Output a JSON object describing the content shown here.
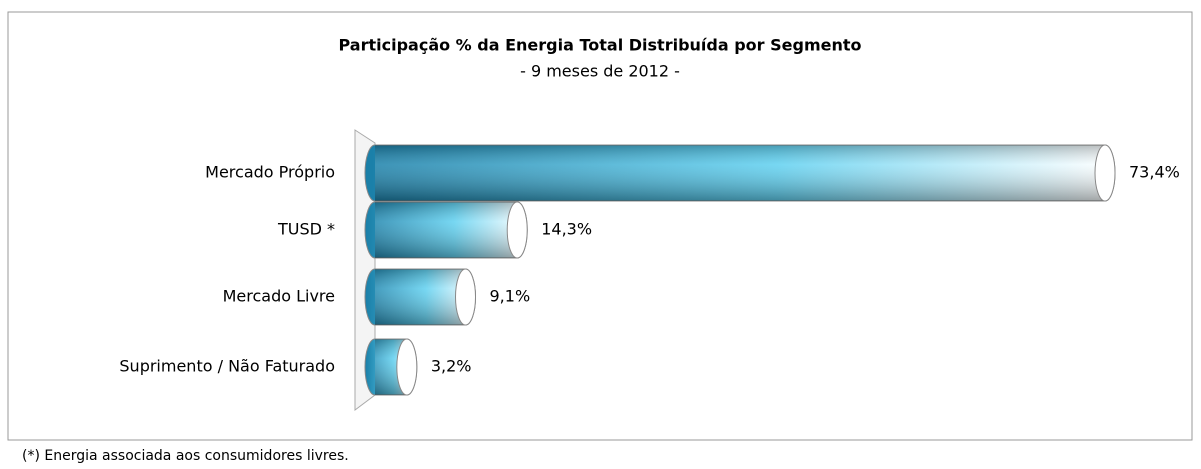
{
  "chart_data": {
    "type": "bar",
    "orientation": "horizontal",
    "title": "Participação % da Energia Total Distribuída por Segmento",
    "subtitle": "- 9 meses de 2012 -",
    "categories": [
      "Mercado Próprio",
      "TUSD *",
      "Mercado Livre",
      "Suprimento / Não Faturado"
    ],
    "values": [
      73.4,
      14.3,
      9.1,
      3.2
    ],
    "value_labels": [
      "73,4%",
      "14,3%",
      "9,1%",
      "3,2%"
    ],
    "color": "#1e8fbf",
    "footnote": "(*) Energia associada aos consumidores livres."
  }
}
